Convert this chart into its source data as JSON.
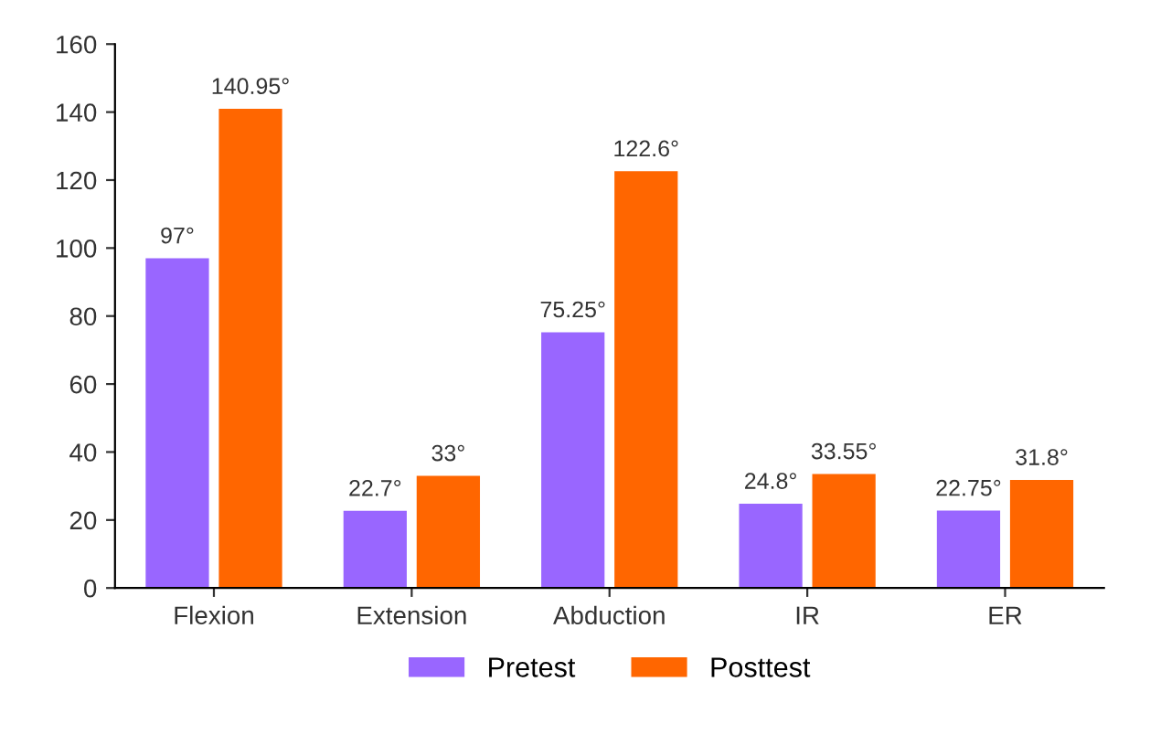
{
  "chart_data": {
    "type": "bar",
    "categories": [
      "Flexion",
      "Extension",
      "Abduction",
      "IR",
      "ER"
    ],
    "series": [
      {
        "name": "Pretest",
        "color": "#9966ff",
        "values": [
          97,
          22.7,
          75.25,
          24.8,
          22.75
        ],
        "value_labels": [
          "97°",
          "22.7°",
          "75.25°",
          "24.8°",
          "22.75°"
        ]
      },
      {
        "name": "Posttest",
        "color": "#ff6600",
        "values": [
          140.95,
          33,
          122.6,
          33.55,
          31.8
        ],
        "value_labels": [
          "140.95°",
          "33°",
          "122.6°",
          "33.55°",
          "31.8°"
        ]
      }
    ],
    "ylim": [
      0,
      160
    ],
    "yticks": [
      0,
      20,
      40,
      60,
      80,
      100,
      120,
      140,
      160
    ],
    "grid": false,
    "legend": "bottom"
  }
}
